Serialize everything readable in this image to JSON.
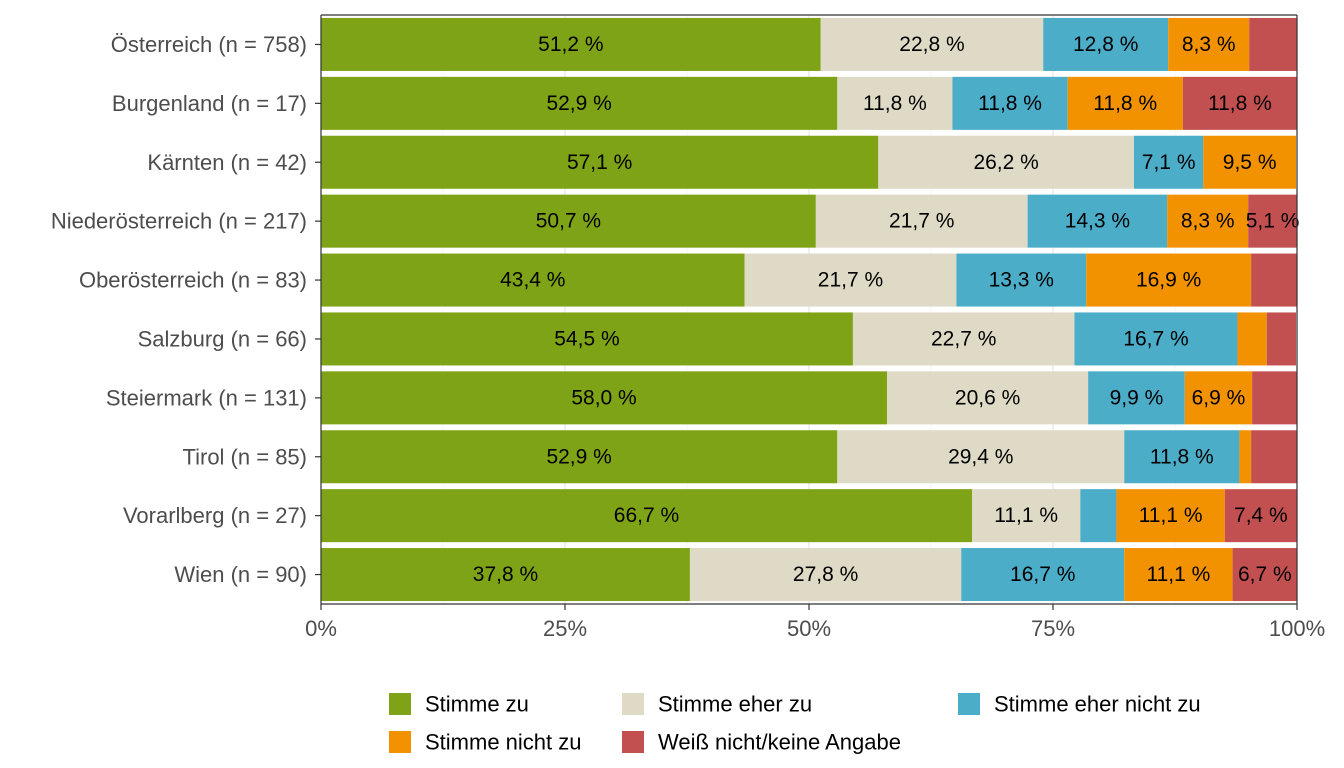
{
  "chart_data": {
    "type": "bar",
    "orientation": "horizontal",
    "stacked": "percent",
    "categories": [
      "Österreich (n = 758)",
      "Burgenland (n = 17)",
      "Kärnten (n = 42)",
      "Niederösterreich (n = 217)",
      "Oberösterreich (n = 83)",
      "Salzburg (n = 66)",
      "Steiermark (n = 131)",
      "Tirol (n = 85)",
      "Vorarlberg (n = 27)",
      "Wien (n = 90)"
    ],
    "series": [
      {
        "name": "Stimme zu",
        "color": "#7fa316",
        "values": [
          51.2,
          52.9,
          57.1,
          50.7,
          43.4,
          54.5,
          58.0,
          52.9,
          66.7,
          37.8
        ],
        "labels": [
          "51,2 %",
          "52,9 %",
          "57,1 %",
          "50,7 %",
          "43,4 %",
          "54,5 %",
          "58,0 %",
          "52,9 %",
          "66,7 %",
          "37,8 %"
        ]
      },
      {
        "name": "Stimme eher zu",
        "color": "#dedac6",
        "values": [
          22.8,
          11.8,
          26.2,
          21.7,
          21.7,
          22.7,
          20.6,
          29.4,
          11.1,
          27.8
        ],
        "labels": [
          "22,8 %",
          "11,8 %",
          "26,2 %",
          "21,7 %",
          "21,7 %",
          "22,7 %",
          "20,6 %",
          "29,4 %",
          "11,1 %",
          "27,8 %"
        ]
      },
      {
        "name": "Stimme eher nicht zu",
        "color": "#4badc8",
        "values": [
          12.8,
          11.8,
          7.1,
          14.3,
          13.3,
          16.7,
          9.9,
          11.8,
          3.7,
          16.7
        ],
        "labels": [
          "12,8 %",
          "11,8 %",
          "7,1 %",
          "14,3 %",
          "13,3 %",
          "16,7 %",
          "9,9 %",
          "11,8 %",
          "",
          "16,7 %"
        ]
      },
      {
        "name": "Stimme nicht zu",
        "color": "#f39200",
        "values": [
          8.3,
          11.8,
          9.5,
          8.3,
          16.9,
          3.0,
          6.9,
          1.2,
          11.1,
          11.1
        ],
        "labels": [
          "8,3 %",
          "11,8 %",
          "9,5 %",
          "8,3 %",
          "16,9 %",
          "",
          "6,9 %",
          "",
          "11,1 %",
          "11,1 %"
        ]
      },
      {
        "name": "Weiß nicht/keine Angabe",
        "color": "#c35050",
        "values": [
          4.9,
          11.8,
          0,
          5.1,
          4.8,
          3.0,
          4.6,
          4.7,
          7.4,
          6.7
        ],
        "labels": [
          "",
          "11,8 %",
          "",
          "5,1 %",
          "",
          "",
          "",
          "",
          "7,4 %",
          "6,7 %"
        ]
      }
    ],
    "x_ticks": [
      "0%",
      "25%",
      "50%",
      "75%",
      "100%"
    ],
    "xlim": [
      0,
      100
    ],
    "grid": true,
    "legend_position": "bottom"
  }
}
